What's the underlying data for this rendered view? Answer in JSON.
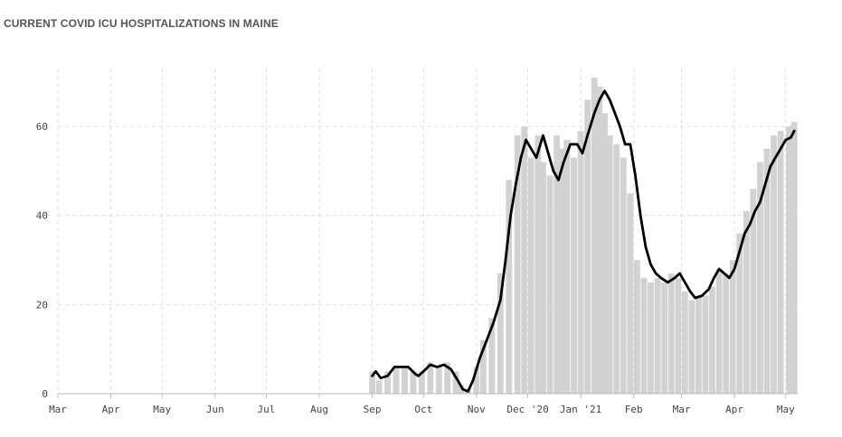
{
  "title": "CURRENT COVID ICU HOSPITALIZATIONS IN MAINE",
  "colors": {
    "bar": "#d2d2d2",
    "line": "#000000",
    "grid": "#dddddd",
    "axis": "#bbbbbb"
  },
  "chart_data": {
    "type": "bar",
    "title": "CURRENT COVID ICU HOSPITALIZATIONS IN MAINE",
    "xlabel": "",
    "ylabel": "",
    "ylim": [
      0,
      73
    ],
    "grid": true,
    "yticks": [
      0,
      20,
      40,
      60
    ],
    "xticks": [
      {
        "label": "Mar",
        "date": "2020-03-01"
      },
      {
        "label": "Apr",
        "date": "2020-04-01"
      },
      {
        "label": "May",
        "date": "2020-05-01"
      },
      {
        "label": "Jun",
        "date": "2020-06-01"
      },
      {
        "label": "Jul",
        "date": "2020-07-01"
      },
      {
        "label": "Aug",
        "date": "2020-08-01"
      },
      {
        "label": "Sep",
        "date": "2020-09-01"
      },
      {
        "label": "Oct",
        "date": "2020-10-01"
      },
      {
        "label": "Nov",
        "date": "2020-11-01"
      },
      {
        "label": "Dec '20",
        "date": "2020-12-01"
      },
      {
        "label": "Jan '21",
        "date": "2021-01-01"
      },
      {
        "label": "Feb",
        "date": "2021-02-01"
      },
      {
        "label": "Mar",
        "date": "2021-03-01"
      },
      {
        "label": "Apr",
        "date": "2021-04-01"
      },
      {
        "label": "May",
        "date": "2021-05-01"
      }
    ],
    "series": [
      {
        "kind": "bars",
        "points": [
          [
            "2020-09-01",
            5
          ],
          [
            "2020-09-05",
            3
          ],
          [
            "2020-09-10",
            5
          ],
          [
            "2020-09-15",
            6
          ],
          [
            "2020-09-20",
            6
          ],
          [
            "2020-09-25",
            5
          ],
          [
            "2020-09-30",
            5
          ],
          [
            "2020-10-05",
            7
          ],
          [
            "2020-10-10",
            6
          ],
          [
            "2020-10-15",
            7
          ],
          [
            "2020-10-20",
            5
          ],
          [
            "2020-10-23",
            2
          ],
          [
            "2020-10-27",
            1
          ],
          [
            "2020-11-01",
            6
          ],
          [
            "2020-11-05",
            12
          ],
          [
            "2020-11-10",
            17
          ],
          [
            "2020-11-15",
            27
          ],
          [
            "2020-11-20",
            48
          ],
          [
            "2020-11-25",
            58
          ],
          [
            "2020-11-29",
            60
          ],
          [
            "2020-12-03",
            53
          ],
          [
            "2020-12-07",
            58
          ],
          [
            "2020-12-10",
            52
          ],
          [
            "2020-12-14",
            49
          ],
          [
            "2020-12-18",
            58
          ],
          [
            "2020-12-21",
            55
          ],
          [
            "2020-12-24",
            57
          ],
          [
            "2020-12-28",
            53
          ],
          [
            "2021-01-01",
            59
          ],
          [
            "2021-01-05",
            66
          ],
          [
            "2021-01-09",
            71
          ],
          [
            "2021-01-12",
            69
          ],
          [
            "2021-01-15",
            63
          ],
          [
            "2021-01-18",
            58
          ],
          [
            "2021-01-22",
            56
          ],
          [
            "2021-01-26",
            53
          ],
          [
            "2021-01-30",
            45
          ],
          [
            "2021-02-03",
            30
          ],
          [
            "2021-02-07",
            26
          ],
          [
            "2021-02-11",
            25
          ],
          [
            "2021-02-15",
            26
          ],
          [
            "2021-02-19",
            25
          ],
          [
            "2021-02-23",
            27
          ],
          [
            "2021-02-27",
            26
          ],
          [
            "2021-03-03",
            23
          ],
          [
            "2021-03-07",
            21
          ],
          [
            "2021-03-11",
            22
          ],
          [
            "2021-03-15",
            22
          ],
          [
            "2021-03-19",
            24
          ],
          [
            "2021-03-23",
            28
          ],
          [
            "2021-03-27",
            27
          ],
          [
            "2021-03-31",
            30
          ],
          [
            "2021-04-04",
            36
          ],
          [
            "2021-04-08",
            41
          ],
          [
            "2021-04-12",
            46
          ],
          [
            "2021-04-16",
            52
          ],
          [
            "2021-04-20",
            55
          ],
          [
            "2021-04-24",
            58
          ],
          [
            "2021-04-28",
            59
          ],
          [
            "2021-05-03",
            60
          ],
          [
            "2021-05-06",
            61
          ]
        ]
      },
      {
        "kind": "line",
        "points": [
          [
            "2020-09-01",
            4
          ],
          [
            "2020-09-03",
            5
          ],
          [
            "2020-09-06",
            3.5
          ],
          [
            "2020-09-10",
            4
          ],
          [
            "2020-09-14",
            6
          ],
          [
            "2020-09-18",
            6
          ],
          [
            "2020-09-22",
            6
          ],
          [
            "2020-09-26",
            4.5
          ],
          [
            "2020-09-28",
            4
          ],
          [
            "2020-10-01",
            5
          ],
          [
            "2020-10-05",
            6.5
          ],
          [
            "2020-10-09",
            6
          ],
          [
            "2020-10-13",
            6.5
          ],
          [
            "2020-10-17",
            5.5
          ],
          [
            "2020-10-21",
            3
          ],
          [
            "2020-10-24",
            1
          ],
          [
            "2020-10-27",
            0.5
          ],
          [
            "2020-10-30",
            3
          ],
          [
            "2020-11-03",
            8
          ],
          [
            "2020-11-07",
            12
          ],
          [
            "2020-11-11",
            16
          ],
          [
            "2020-11-15",
            21
          ],
          [
            "2020-11-18",
            30
          ],
          [
            "2020-11-21",
            40
          ],
          [
            "2020-11-24",
            47
          ],
          [
            "2020-11-27",
            53
          ],
          [
            "2020-11-30",
            57
          ],
          [
            "2020-12-03",
            55
          ],
          [
            "2020-12-06",
            53
          ],
          [
            "2020-12-10",
            58
          ],
          [
            "2020-12-13",
            54
          ],
          [
            "2020-12-16",
            50
          ],
          [
            "2020-12-19",
            48
          ],
          [
            "2020-12-22",
            52
          ],
          [
            "2020-12-26",
            56
          ],
          [
            "2020-12-30",
            56
          ],
          [
            "2021-01-02",
            54
          ],
          [
            "2021-01-05",
            58
          ],
          [
            "2021-01-09",
            63
          ],
          [
            "2021-01-12",
            66
          ],
          [
            "2021-01-15",
            68
          ],
          [
            "2021-01-18",
            66
          ],
          [
            "2021-01-21",
            63
          ],
          [
            "2021-01-24",
            60
          ],
          [
            "2021-01-27",
            56
          ],
          [
            "2021-01-30",
            56
          ],
          [
            "2021-02-02",
            49
          ],
          [
            "2021-02-05",
            40
          ],
          [
            "2021-02-08",
            33
          ],
          [
            "2021-02-11",
            29
          ],
          [
            "2021-02-14",
            27
          ],
          [
            "2021-02-17",
            26
          ],
          [
            "2021-02-21",
            25
          ],
          [
            "2021-02-25",
            26
          ],
          [
            "2021-02-28",
            27
          ],
          [
            "2021-03-03",
            25
          ],
          [
            "2021-03-06",
            23
          ],
          [
            "2021-03-09",
            21.5
          ],
          [
            "2021-03-13",
            22
          ],
          [
            "2021-03-17",
            23.5
          ],
          [
            "2021-03-20",
            26
          ],
          [
            "2021-03-23",
            28
          ],
          [
            "2021-03-26",
            27
          ],
          [
            "2021-03-29",
            26
          ],
          [
            "2021-04-01",
            28
          ],
          [
            "2021-04-04",
            32
          ],
          [
            "2021-04-07",
            36
          ],
          [
            "2021-04-10",
            38
          ],
          [
            "2021-04-13",
            41
          ],
          [
            "2021-04-16",
            43
          ],
          [
            "2021-04-19",
            47
          ],
          [
            "2021-04-22",
            51
          ],
          [
            "2021-04-25",
            53
          ],
          [
            "2021-04-28",
            55
          ],
          [
            "2021-05-01",
            57
          ],
          [
            "2021-05-04",
            57.5
          ],
          [
            "2021-05-06",
            59
          ]
        ]
      }
    ]
  }
}
